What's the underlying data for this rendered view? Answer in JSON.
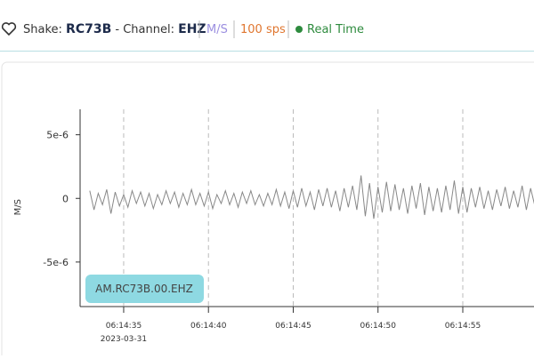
{
  "header": {
    "shake_label": "Shake:",
    "shake": "RC73B",
    "channel_label": "- Channel:",
    "channel": "EHZ",
    "units": "M/S",
    "rate": "100 sps",
    "mode": "Real Time"
  },
  "chart_data": {
    "type": "line",
    "ylabel": "M/S",
    "legend": "AM.RC73B.00.EHZ",
    "date_label": "2023-03-31",
    "x": [
      33,
      33.25,
      33.5,
      33.75,
      34,
      34.25,
      34.5,
      34.75,
      35,
      35.25,
      35.5,
      35.75,
      36,
      36.25,
      36.5,
      36.75,
      37,
      37.25,
      37.5,
      37.75,
      38,
      38.25,
      38.5,
      38.75,
      39,
      39.25,
      39.5,
      39.75,
      40,
      40.25,
      40.5,
      40.75,
      41,
      41.25,
      41.5,
      41.75,
      42,
      42.25,
      42.5,
      42.75,
      43,
      43.25,
      43.5,
      43.75,
      44,
      44.25,
      44.5,
      44.75,
      45,
      45.25,
      45.5,
      45.75,
      46,
      46.25,
      46.5,
      46.75,
      47,
      47.25,
      47.5,
      47.75,
      48,
      48.25,
      48.5,
      48.75,
      49,
      49.25,
      49.5,
      49.75,
      50,
      50.25,
      50.5,
      50.75,
      51,
      51.25,
      51.5,
      51.75,
      52,
      52.25,
      52.5,
      52.75,
      53,
      53.25,
      53.5,
      53.75,
      54,
      54.25,
      54.5,
      54.75,
      55,
      55.25,
      55.5,
      55.75,
      56,
      56.25,
      56.5,
      56.75,
      57,
      57.25,
      57.5,
      57.75,
      58,
      58.25,
      58.5,
      58.75,
      59,
      59.25
    ],
    "series": [
      {
        "name": "AM.RC73B.00.EHZ",
        "color": "#888888",
        "values": [
          6e-07,
          -9e-07,
          4e-07,
          -5e-07,
          7e-07,
          -1.2e-06,
          5e-07,
          -6e-07,
          3e-07,
          -7e-07,
          6e-07,
          -4e-07,
          5e-07,
          -6e-07,
          4e-07,
          -8e-07,
          3e-07,
          -5e-07,
          6e-07,
          -4e-07,
          5e-07,
          -7e-07,
          4e-07,
          -5e-07,
          7e-07,
          -5e-07,
          4e-07,
          -6e-07,
          5e-07,
          -8e-07,
          3e-07,
          -4e-07,
          6e-07,
          -5e-07,
          4e-07,
          -7e-07,
          5e-07,
          -4e-07,
          6e-07,
          -5e-07,
          3e-07,
          -6e-07,
          4e-07,
          -5e-07,
          7e-07,
          -6e-07,
          5e-07,
          -8e-07,
          6e-07,
          -7e-07,
          8e-07,
          -6e-07,
          5e-07,
          -9e-07,
          7e-07,
          -6e-07,
          8e-07,
          -7e-07,
          6e-07,
          -1e-06,
          8e-07,
          -7e-07,
          1e-06,
          -9e-07,
          1.8e-06,
          -1.4e-06,
          1.2e-06,
          -1.6e-06,
          9e-07,
          -1.1e-06,
          1.3e-06,
          -1e-06,
          1.1e-06,
          -9e-07,
          8e-07,
          -1.2e-06,
          1e-06,
          -8e-07,
          1.2e-06,
          -1.3e-06,
          9e-07,
          -1e-06,
          8e-07,
          -1.1e-06,
          1e-06,
          -9e-07,
          1.4e-06,
          -1.2e-06,
          9e-07,
          -1.1e-06,
          8e-07,
          -7e-07,
          9e-07,
          -8e-07,
          6e-07,
          -9e-07,
          7e-07,
          -6e-07,
          9e-07,
          -8e-07,
          6e-07,
          -7e-07,
          1e-06,
          -9e-07,
          8e-07,
          -6e-07
        ]
      }
    ],
    "xlim": [
      32.43,
      59.2
    ],
    "xticks": [
      {
        "value": 35,
        "label": "06:14:35"
      },
      {
        "value": 40,
        "label": "06:14:40"
      },
      {
        "value": 45,
        "label": "06:14:45"
      },
      {
        "value": 50,
        "label": "06:14:50"
      },
      {
        "value": 55,
        "label": "06:14:55"
      }
    ],
    "ylim": [
      -8.5e-06,
      7e-06
    ],
    "yticks": [
      {
        "value": 5e-06,
        "label": "5e-6"
      },
      0,
      {
        "value": -5e-06,
        "label": "-5e-6"
      }
    ],
    "grid": true
  }
}
